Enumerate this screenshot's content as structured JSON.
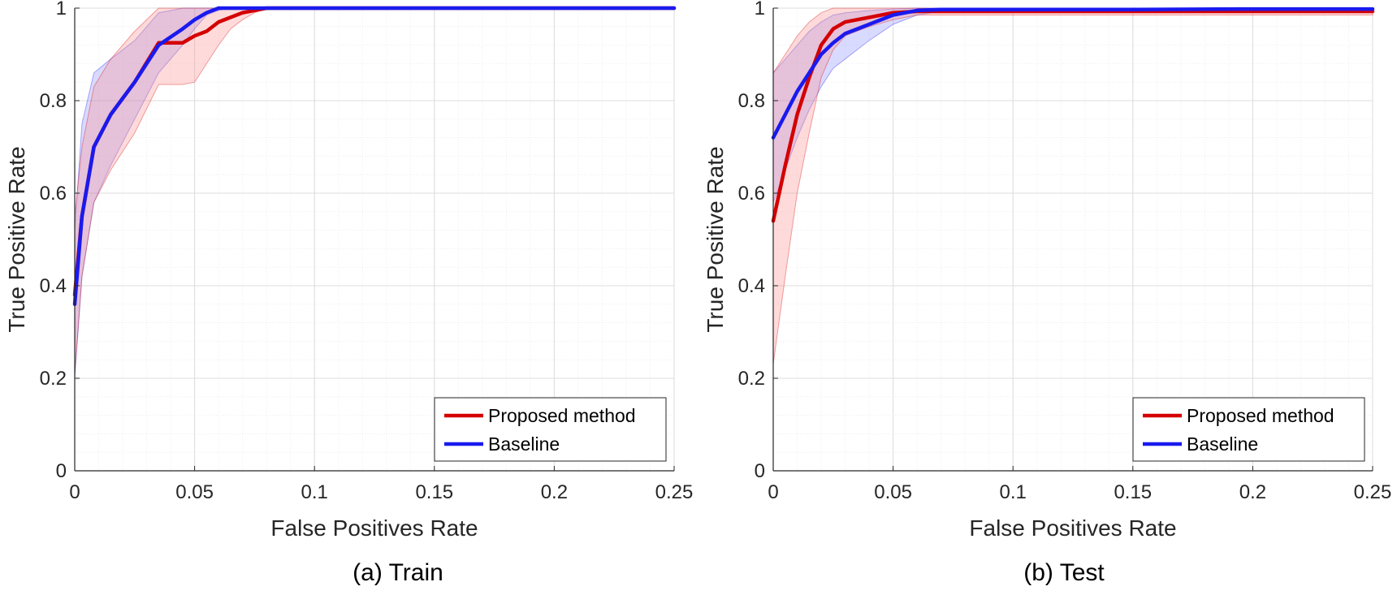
{
  "colors": {
    "proposed": "#d40000",
    "baseline": "#1a1aee",
    "proposed_band": "#ff8c8c",
    "baseline_band": "#8a8cff",
    "grid_major": "#dcdcdc",
    "grid_minor": "#eeeeee",
    "axis": "#262626"
  },
  "chart_data": [
    {
      "type": "line",
      "caption": "(a) Train",
      "xlabel": "False Positives Rate",
      "ylabel": "True Positive Rate",
      "xlim": [
        0,
        0.25
      ],
      "ylim": [
        0,
        1
      ],
      "xticks": [
        0,
        0.05,
        0.1,
        0.15,
        0.2,
        0.25
      ],
      "xtick_labels": [
        "0",
        "0.05",
        "0.1",
        "0.15",
        "0.2",
        "0.25"
      ],
      "yticks": [
        0,
        0.2,
        0.4,
        0.6,
        0.8,
        1
      ],
      "ytick_labels": [
        "0",
        "0.2",
        "0.4",
        "0.6",
        "0.8",
        "1"
      ],
      "grid": true,
      "minor_grid": true,
      "legend_position": "bottom-right",
      "series": [
        {
          "name": "Proposed method",
          "color_key": "proposed",
          "x": [
            0,
            0.003,
            0.008,
            0.015,
            0.025,
            0.035,
            0.045,
            0.05,
            0.055,
            0.06,
            0.065,
            0.07,
            0.075,
            0.08,
            0.09,
            0.15,
            0.25
          ],
          "y": [
            0.38,
            0.55,
            0.7,
            0.77,
            0.84,
            0.925,
            0.925,
            0.94,
            0.95,
            0.97,
            0.98,
            0.99,
            0.995,
            1.0,
            1.0,
            1.0,
            1.0
          ],
          "band_upper": [
            0.55,
            0.7,
            0.83,
            0.89,
            0.95,
            1.0,
            1.0,
            1.0,
            1.0,
            1.0,
            1.0,
            1.0,
            1.0,
            1.0,
            1.0,
            1.0,
            1.0
          ],
          "band_lower": [
            0.21,
            0.42,
            0.58,
            0.65,
            0.73,
            0.835,
            0.835,
            0.84,
            0.88,
            0.92,
            0.955,
            0.975,
            0.99,
            1.0,
            1.0,
            1.0,
            1.0
          ]
        },
        {
          "name": "Baseline",
          "color_key": "baseline",
          "x": [
            0,
            0.003,
            0.008,
            0.015,
            0.025,
            0.035,
            0.045,
            0.05,
            0.055,
            0.06,
            0.065,
            0.08,
            0.15,
            0.25
          ],
          "y": [
            0.36,
            0.55,
            0.7,
            0.77,
            0.84,
            0.92,
            0.955,
            0.975,
            0.99,
            1.0,
            1.0,
            1.0,
            1.0,
            1.0
          ],
          "band_upper": [
            0.52,
            0.75,
            0.86,
            0.89,
            0.93,
            0.99,
            1.0,
            1.0,
            1.0,
            1.0,
            1.0,
            1.0,
            1.0,
            1.0
          ],
          "band_lower": [
            0.2,
            0.42,
            0.58,
            0.66,
            0.76,
            0.86,
            0.92,
            0.955,
            0.985,
            0.995,
            1.0,
            1.0,
            1.0,
            1.0
          ]
        }
      ]
    },
    {
      "type": "line",
      "caption": "(b) Test",
      "xlabel": "False Positives Rate",
      "ylabel": "True Positive Rate",
      "xlim": [
        0,
        0.25
      ],
      "ylim": [
        0,
        1
      ],
      "xticks": [
        0,
        0.05,
        0.1,
        0.15,
        0.2,
        0.25
      ],
      "xtick_labels": [
        "0",
        "0.05",
        "0.1",
        "0.15",
        "0.2",
        "0.25"
      ],
      "yticks": [
        0,
        0.2,
        0.4,
        0.6,
        0.8,
        1
      ],
      "ytick_labels": [
        "0",
        "0.2",
        "0.4",
        "0.6",
        "0.8",
        "1"
      ],
      "grid": true,
      "minor_grid": true,
      "legend_position": "bottom-right",
      "series": [
        {
          "name": "Proposed method",
          "color_key": "proposed",
          "x": [
            0,
            0.005,
            0.01,
            0.015,
            0.02,
            0.025,
            0.03,
            0.04,
            0.05,
            0.06,
            0.1,
            0.15,
            0.2,
            0.25
          ],
          "y": [
            0.54,
            0.66,
            0.77,
            0.85,
            0.92,
            0.955,
            0.97,
            0.98,
            0.99,
            0.993,
            0.993,
            0.993,
            0.993,
            0.993
          ],
          "band_upper": [
            0.86,
            0.9,
            0.94,
            0.97,
            0.99,
            1.0,
            1.0,
            1.0,
            1.0,
            1.0,
            0.997,
            0.997,
            0.997,
            0.997
          ],
          "band_lower": [
            0.23,
            0.42,
            0.6,
            0.73,
            0.85,
            0.91,
            0.94,
            0.96,
            0.975,
            0.985,
            0.985,
            0.985,
            0.985,
            0.985
          ]
        },
        {
          "name": "Baseline",
          "color_key": "baseline",
          "x": [
            0,
            0.005,
            0.01,
            0.015,
            0.02,
            0.025,
            0.03,
            0.04,
            0.05,
            0.06,
            0.07,
            0.1,
            0.15,
            0.2,
            0.25
          ],
          "y": [
            0.72,
            0.77,
            0.82,
            0.86,
            0.9,
            0.925,
            0.945,
            0.965,
            0.985,
            0.995,
            0.997,
            0.997,
            0.997,
            0.998,
            0.998
          ],
          "band_upper": [
            0.86,
            0.89,
            0.92,
            0.95,
            0.97,
            0.985,
            0.99,
            0.995,
            0.998,
            1.0,
            1.0,
            1.0,
            1.0,
            1.0,
            1.0
          ],
          "band_lower": [
            0.58,
            0.65,
            0.72,
            0.78,
            0.83,
            0.87,
            0.89,
            0.93,
            0.965,
            0.985,
            0.993,
            0.993,
            0.993,
            0.993,
            0.993
          ]
        }
      ]
    }
  ]
}
